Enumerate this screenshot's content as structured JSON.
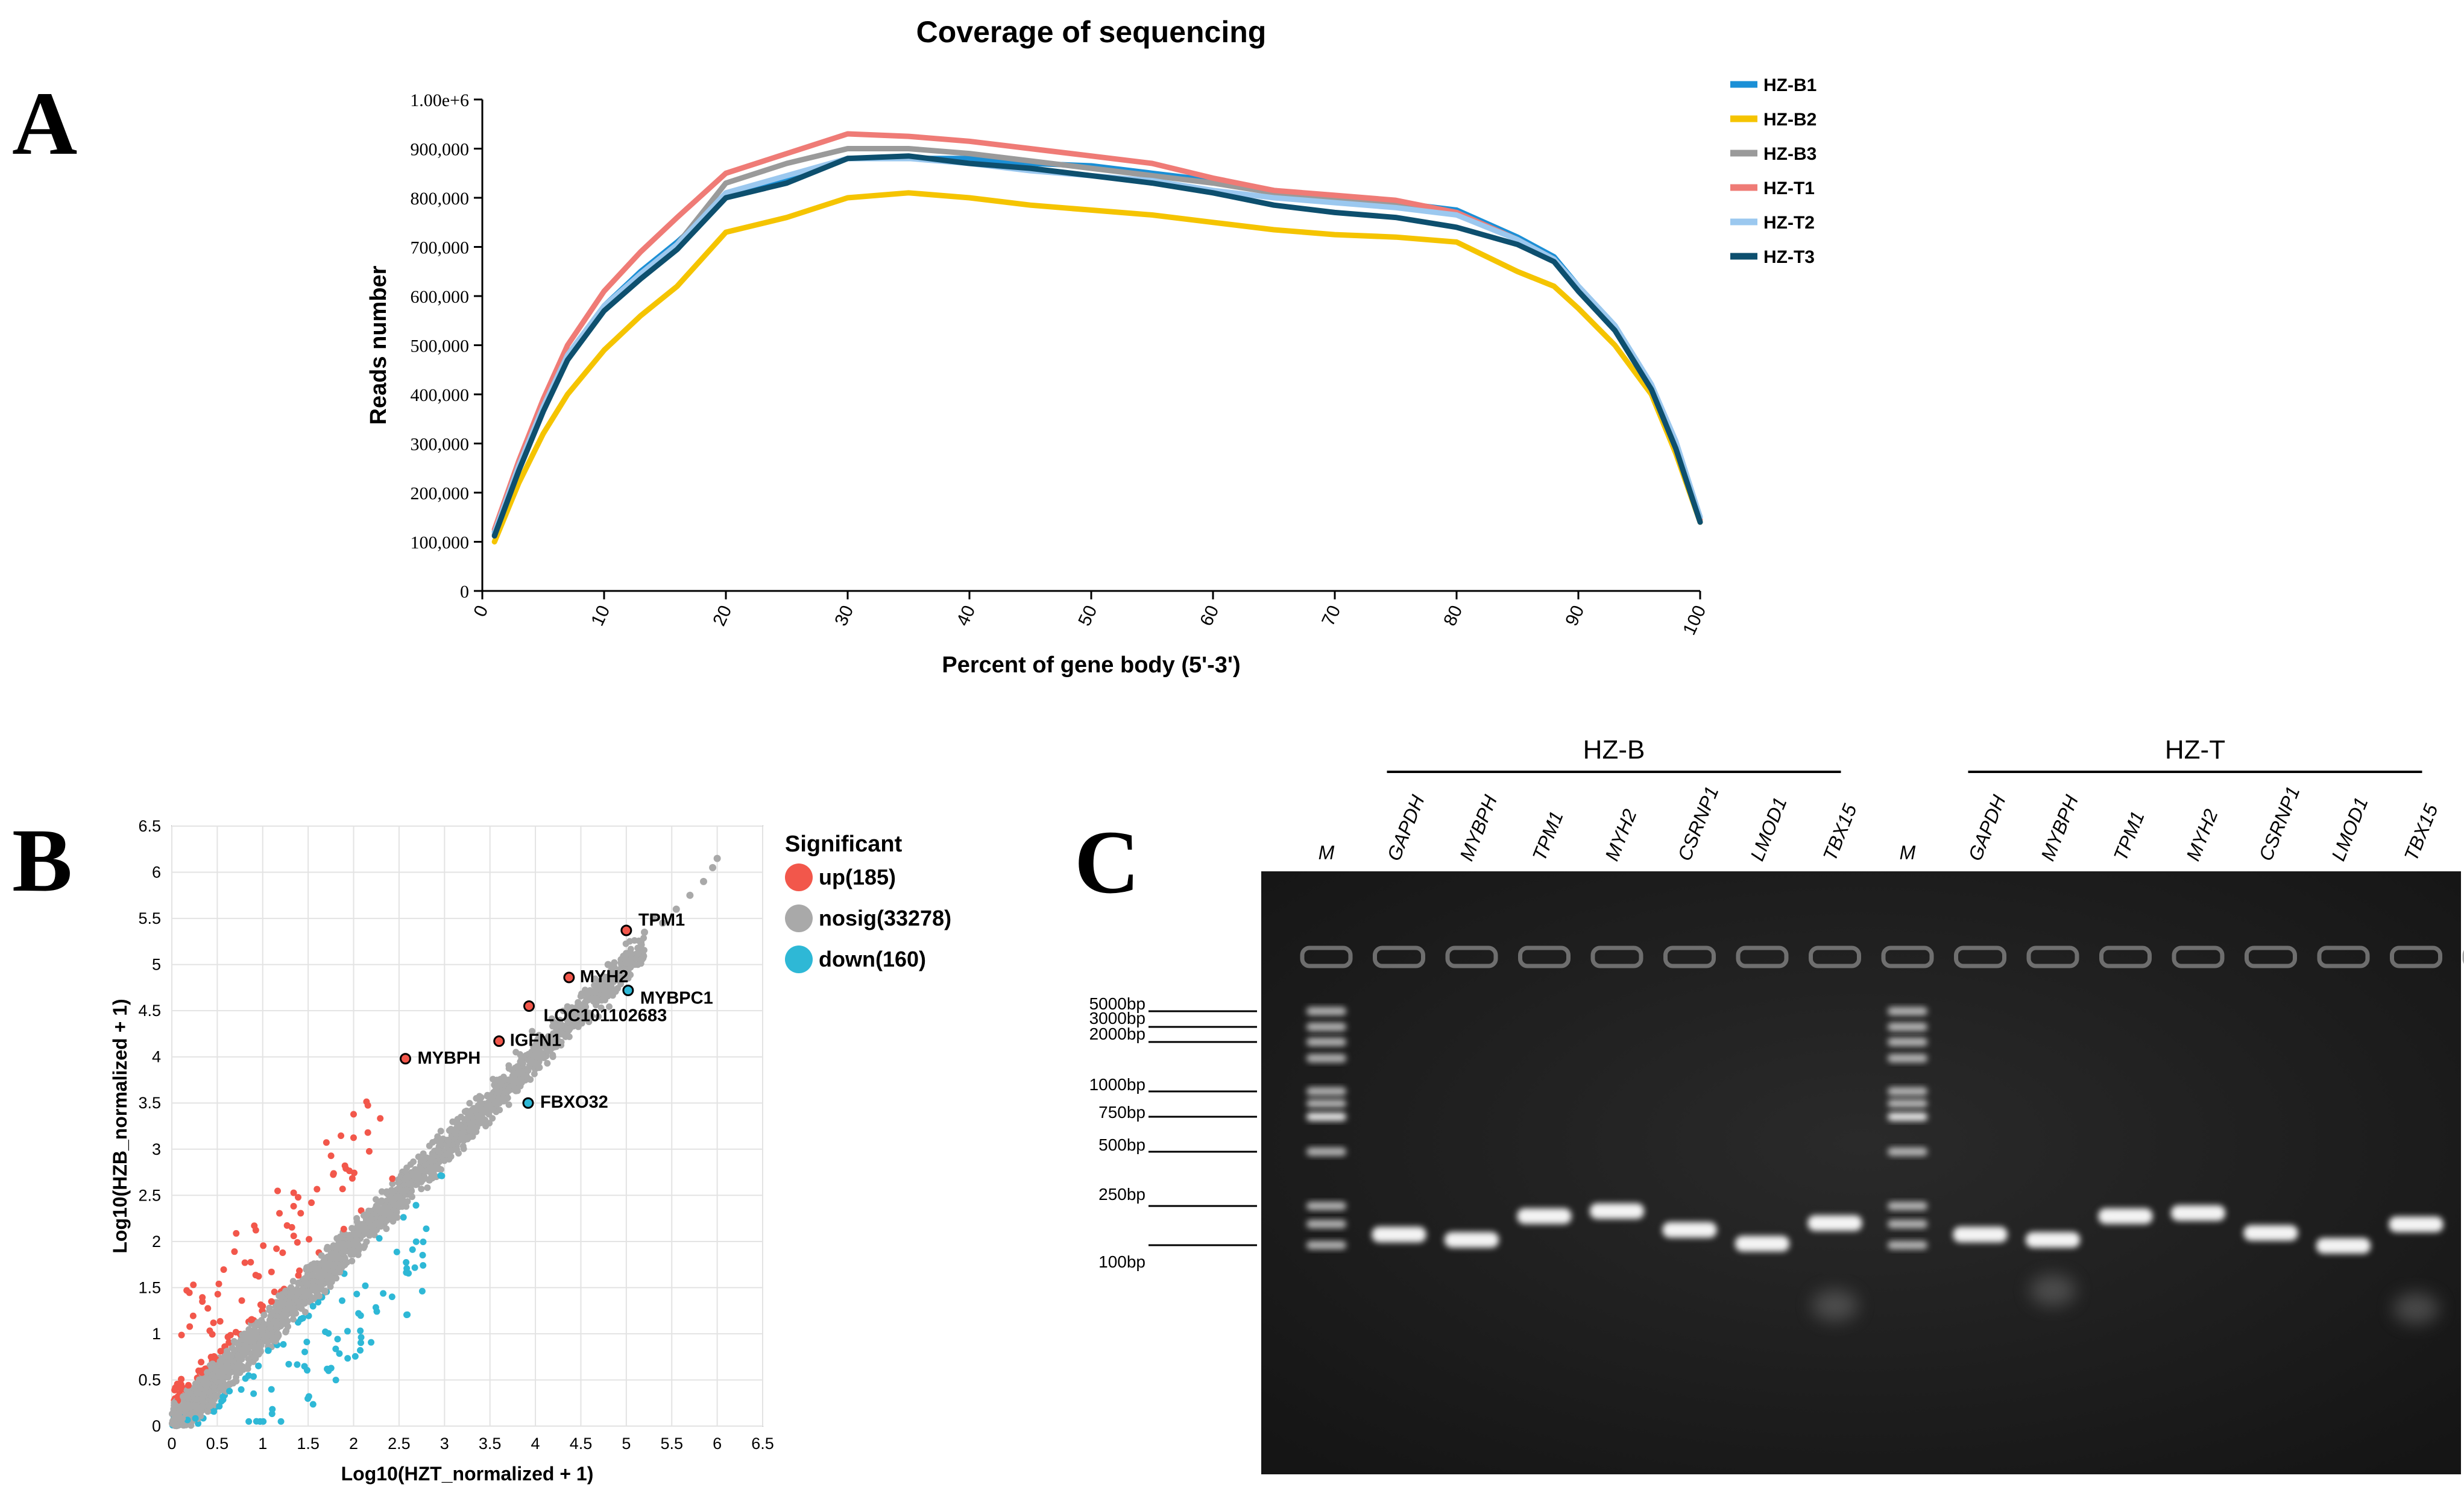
{
  "panels": {
    "a": {
      "letter": "A",
      "chart_data": {
        "type": "line",
        "title": "Coverage of sequencing",
        "xlabel": "Percent of gene body (5'-3')",
        "ylabel": "Reads number",
        "xlim": [
          0,
          100
        ],
        "ylim": [
          0,
          1000000
        ],
        "xticks": [
          0,
          10,
          20,
          30,
          40,
          50,
          60,
          70,
          80,
          90,
          100
        ],
        "xtick_labels": [
          "0",
          "10",
          "20",
          "30",
          "40",
          "50",
          "60",
          "70",
          "80",
          "90",
          "100"
        ],
        "yticks": [
          0,
          100000,
          200000,
          300000,
          400000,
          500000,
          600000,
          700000,
          800000,
          900000,
          1000000
        ],
        "ytick_labels": [
          "0",
          "100,000",
          "200,000",
          "300,000",
          "400,000",
          "500,000",
          "600,000",
          "700,000",
          "800,000",
          "900,000",
          "1.00e+6"
        ],
        "legend_position": "top-right",
        "series": [
          {
            "name": "HZ-B1",
            "color": "#1a8fd6",
            "x": [
              1,
              3,
              5,
              7,
              10,
              13,
              16,
              20,
              25,
              30,
              35,
              40,
              45,
              50,
              55,
              60,
              65,
              70,
              75,
              80,
              85,
              88,
              90,
              93,
              96,
              98,
              100
            ],
            "values": [
              120000,
              260000,
              380000,
              480000,
              580000,
              650000,
              710000,
              800000,
              840000,
              880000,
              880000,
              880000,
              870000,
              865000,
              850000,
              835000,
              815000,
              800000,
              790000,
              775000,
              720000,
              680000,
              620000,
              540000,
              420000,
              300000,
              150000
            ]
          },
          {
            "name": "HZ-B2",
            "color": "#f5c400",
            "x": [
              1,
              3,
              5,
              7,
              10,
              13,
              16,
              20,
              25,
              30,
              35,
              40,
              45,
              50,
              55,
              60,
              65,
              70,
              75,
              80,
              85,
              88,
              90,
              93,
              96,
              98,
              100
            ],
            "values": [
              100000,
              220000,
              320000,
              400000,
              490000,
              560000,
              620000,
              730000,
              760000,
              800000,
              810000,
              800000,
              785000,
              775000,
              765000,
              750000,
              735000,
              725000,
              720000,
              710000,
              650000,
              620000,
              575000,
              500000,
              400000,
              280000,
              140000
            ]
          },
          {
            "name": "HZ-B3",
            "color": "#9a9a9a",
            "x": [
              1,
              3,
              5,
              7,
              10,
              13,
              16,
              20,
              25,
              30,
              35,
              40,
              45,
              50,
              55,
              60,
              65,
              70,
              75,
              80,
              85,
              88,
              90,
              93,
              96,
              98,
              100
            ],
            "values": [
              115000,
              250000,
              370000,
              470000,
              575000,
              645000,
              705000,
              830000,
              870000,
              900000,
              900000,
              890000,
              875000,
              860000,
              845000,
              830000,
              810000,
              800000,
              785000,
              770000,
              715000,
              675000,
              615000,
              535000,
              415000,
              300000,
              150000
            ]
          },
          {
            "name": "HZ-T1",
            "color": "#ef7b76",
            "x": [
              1,
              3,
              5,
              7,
              10,
              13,
              16,
              20,
              25,
              30,
              35,
              40,
              45,
              50,
              55,
              60,
              65,
              70,
              75,
              80,
              85,
              88,
              90,
              93,
              96,
              98,
              100
            ],
            "values": [
              125000,
              265000,
              390000,
              500000,
              610000,
              690000,
              760000,
              850000,
              890000,
              930000,
              925000,
              915000,
              900000,
              885000,
              870000,
              840000,
              815000,
              805000,
              795000,
              770000,
              715000,
              675000,
              615000,
              535000,
              410000,
              295000,
              145000
            ]
          },
          {
            "name": "HZ-T2",
            "color": "#9bc8ef",
            "x": [
              1,
              3,
              5,
              7,
              10,
              13,
              16,
              20,
              25,
              30,
              35,
              40,
              45,
              50,
              55,
              60,
              65,
              70,
              75,
              80,
              85,
              88,
              90,
              93,
              96,
              98,
              100
            ],
            "values": [
              118000,
              255000,
              375000,
              480000,
              580000,
              645000,
              705000,
              810000,
              845000,
              880000,
              880000,
              870000,
              855000,
              845000,
              835000,
              815000,
              800000,
              790000,
              780000,
              765000,
              715000,
              675000,
              620000,
              540000,
              420000,
              305000,
              150000
            ]
          },
          {
            "name": "HZ-T3",
            "color": "#0d4f6e",
            "x": [
              1,
              3,
              5,
              7,
              10,
              13,
              16,
              20,
              25,
              30,
              35,
              40,
              45,
              50,
              55,
              60,
              65,
              70,
              75,
              80,
              85,
              88,
              90,
              93,
              96,
              98,
              100
            ],
            "values": [
              112000,
              245000,
              365000,
              470000,
              570000,
              635000,
              695000,
              800000,
              830000,
              880000,
              885000,
              870000,
              860000,
              845000,
              830000,
              810000,
              785000,
              770000,
              760000,
              740000,
              705000,
              670000,
              610000,
              530000,
              410000,
              290000,
              140000
            ]
          }
        ]
      }
    },
    "b": {
      "letter": "B",
      "chart_data": {
        "type": "scatter",
        "xlabel": "Log10(HZT_normalized + 1)",
        "ylabel": "Log10(HZB_normalized + 1)",
        "xlim": [
          0,
          6.5
        ],
        "ylim": [
          0,
          6.5
        ],
        "xticks": [
          0,
          0.5,
          1,
          1.5,
          2,
          2.5,
          3,
          3.5,
          4,
          4.5,
          5,
          5.5,
          6,
          6.5
        ],
        "xtick_labels": [
          "0",
          "0.5",
          "1",
          "1.5",
          "2",
          "2.5",
          "3",
          "3.5",
          "4",
          "4.5",
          "5",
          "5.5",
          "6",
          "6.5"
        ],
        "yticks": [
          0,
          0.5,
          1,
          1.5,
          2,
          2.5,
          3,
          3.5,
          4,
          4.5,
          5,
          5.5,
          6,
          6.5
        ],
        "ytick_labels": [
          "0",
          "0.5",
          "1",
          "1.5",
          "2",
          "2.5",
          "3",
          "3.5",
          "4",
          "4.5",
          "5",
          "5.5",
          "6",
          "6.5"
        ],
        "legend_title": "Significant",
        "legend_position": "right",
        "groups": [
          {
            "name": "up(185)",
            "color": "#f2574b"
          },
          {
            "name": "nosig(33278)",
            "color": "#a9a9a9"
          },
          {
            "name": "down(160)",
            "color": "#2eb8d6"
          }
        ],
        "labeled_genes": [
          {
            "label": "TPM1",
            "x": 5.0,
            "y": 5.37,
            "group": "up"
          },
          {
            "label": "MYH2",
            "x": 4.37,
            "y": 4.86,
            "group": "up"
          },
          {
            "label": "MYBPC1",
            "x": 5.02,
            "y": 4.72,
            "group": "down"
          },
          {
            "label": "LOC101102683",
            "x": 3.93,
            "y": 4.55,
            "group": "up"
          },
          {
            "label": "IGFN1",
            "x": 3.6,
            "y": 4.17,
            "group": "up"
          },
          {
            "label": "MYBPH",
            "x": 2.57,
            "y": 3.98,
            "group": "up"
          },
          {
            "label": "FBXO32",
            "x": 3.92,
            "y": 3.5,
            "group": "down"
          }
        ]
      }
    },
    "c": {
      "letter": "C",
      "group_labels": [
        "HZ-B",
        "HZ-T"
      ],
      "lanes": [
        "M",
        "GAPDH",
        "MYBPH",
        "TPM1",
        "MYH2",
        "CSRNP1",
        "LMOD1",
        "TBX15",
        "M",
        "GAPDH",
        "MYBPH",
        "TPM1",
        "MYH2",
        "CSRNP1",
        "LMOD1",
        "TBX15"
      ],
      "ladder_labels": [
        "5000bp",
        "3000bp",
        "2000bp",
        "1000bp",
        "750bp",
        "500bp",
        "250bp",
        "100bp"
      ],
      "band_sizes_bp": [
        130,
        115,
        200,
        225,
        145,
        105,
        170,
        130,
        115,
        200,
        215,
        135,
        100,
        165
      ]
    }
  }
}
